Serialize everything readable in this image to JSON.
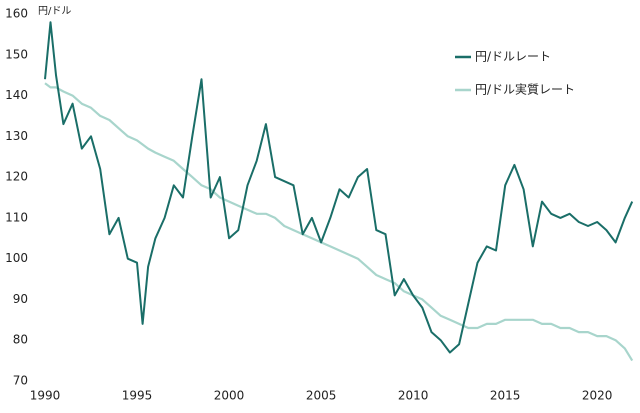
{
  "chart_data": {
    "type": "line",
    "y_label": "円/ドル",
    "x": [
      1990,
      1990.3,
      1990.6,
      1991,
      1991.5,
      1992,
      1992.5,
      1993,
      1993.5,
      1994,
      1994.5,
      1995,
      1995.3,
      1995.6,
      1996,
      1996.5,
      1997,
      1997.5,
      1998,
      1998.5,
      1999,
      1999.5,
      2000,
      2000.5,
      2001,
      2001.5,
      2002,
      2002.5,
      2003,
      2003.5,
      2004,
      2004.5,
      2005,
      2005.5,
      2006,
      2006.5,
      2007,
      2007.5,
      2008,
      2008.5,
      2009,
      2009.5,
      2010,
      2010.5,
      2011,
      2011.5,
      2012,
      2012.5,
      2013,
      2013.5,
      2014,
      2014.5,
      2015,
      2015.5,
      2016,
      2016.5,
      2017,
      2017.5,
      2018,
      2018.5,
      2019,
      2019.5,
      2020,
      2020.5,
      2021,
      2021.5,
      2021.9
    ],
    "series": [
      {
        "name": "円/ドルレート",
        "color": "#1a6e68",
        "values": [
          144,
          158,
          145,
          133,
          138,
          127,
          130,
          122,
          106,
          110,
          100,
          99,
          84,
          98,
          105,
          110,
          118,
          115,
          130,
          144,
          115,
          120,
          105,
          107,
          118,
          124,
          133,
          120,
          119,
          118,
          106,
          110,
          104,
          110,
          117,
          115,
          120,
          122,
          107,
          106,
          91,
          95,
          91,
          88,
          82,
          80,
          77,
          79,
          89,
          99,
          103,
          102,
          118,
          123,
          117,
          103,
          114,
          111,
          110,
          111,
          109,
          108,
          109,
          107,
          104,
          110,
          114
        ]
      },
      {
        "name": "円/ドル実質レート",
        "color": "#a8d5cc",
        "values": [
          143,
          142,
          142,
          141,
          140,
          138,
          137,
          135,
          134,
          132,
          130,
          129,
          128,
          127,
          126,
          125,
          124,
          122,
          120,
          118,
          117,
          115,
          114,
          113,
          112,
          111,
          111,
          110,
          108,
          107,
          106,
          105,
          104,
          103,
          102,
          101,
          100,
          98,
          96,
          95,
          94,
          92,
          91,
          90,
          88,
          86,
          85,
          84,
          83,
          83,
          84,
          84,
          85,
          85,
          85,
          85,
          84,
          84,
          83,
          83,
          82,
          82,
          81,
          81,
          80,
          78,
          75
        ]
      }
    ],
    "xlim": [
      1990,
      2022
    ],
    "xticks": [
      1990,
      1995,
      2000,
      2005,
      2010,
      2015,
      2020
    ],
    "ylim": [
      70,
      160
    ],
    "yticks": [
      70,
      80,
      90,
      100,
      110,
      120,
      130,
      140,
      150,
      160
    ],
    "grid": false,
    "legend": "upper right"
  }
}
